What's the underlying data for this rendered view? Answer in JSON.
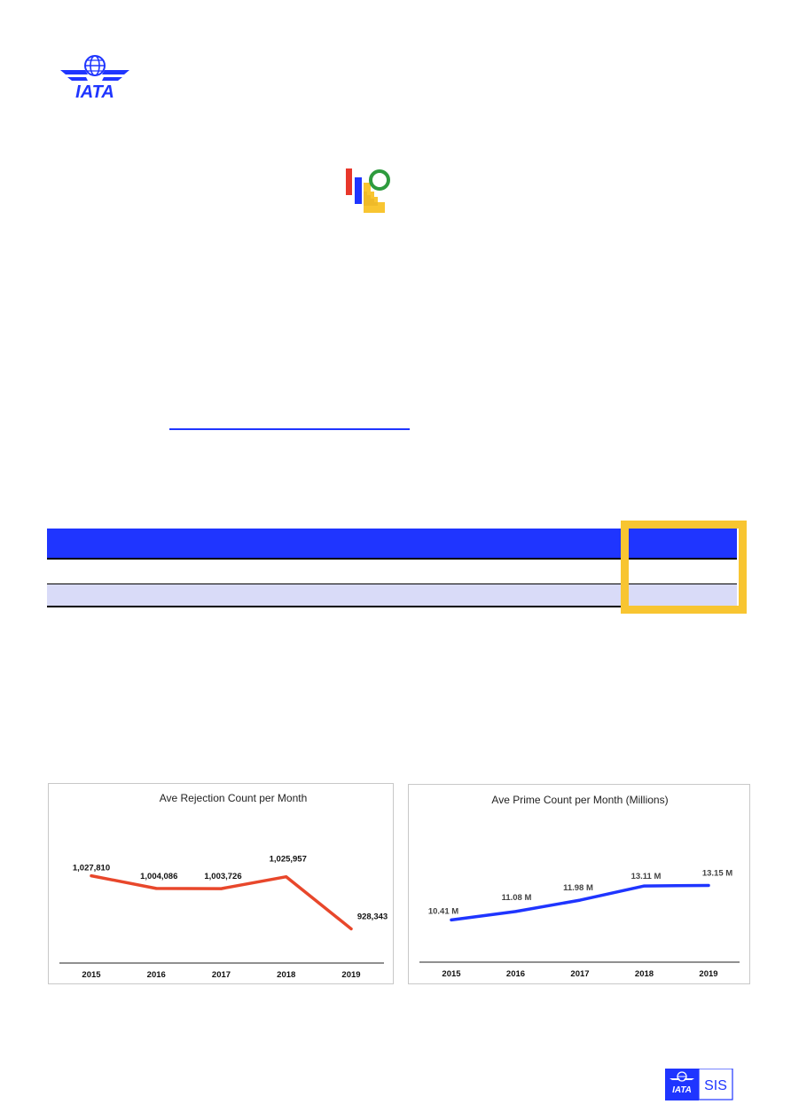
{
  "header": {
    "logo_text": "IATA",
    "brand_color": "#1f35ff"
  },
  "product_mark": {
    "icon": "bars-and-ring-icon",
    "colors": [
      "#e8372b",
      "#1f35ff",
      "#f8c531",
      "#2e9b3e"
    ]
  },
  "table": {
    "header_color": "#1f35ff",
    "alt_row_color": "#d9dbf8",
    "highlight_color": "#f8c531"
  },
  "chart_data": [
    {
      "type": "line",
      "title": "Ave Rejection Count per Month",
      "categories": [
        "2015",
        "2016",
        "2017",
        "2018",
        "2019"
      ],
      "values": [
        1027810,
        1004086,
        1003726,
        1025957,
        928343
      ],
      "data_labels": [
        "1,027,810",
        "1,004,086",
        "1,003,726",
        "1,025,957",
        "928,343"
      ],
      "ylim": [
        600000,
        1200000
      ],
      "color": "#e8472b",
      "grid": false,
      "legend": "none"
    },
    {
      "type": "line",
      "title": "Ave Prime Count per Month (Millions)",
      "categories": [
        "2015",
        "2016",
        "2017",
        "2018",
        "2019"
      ],
      "values": [
        10.41,
        11.08,
        11.98,
        13.11,
        13.15
      ],
      "data_labels": [
        "10.41 M",
        "11.08  M",
        "11.98  M",
        "13.11  M",
        "13.15  M"
      ],
      "ylim": [
        0,
        22
      ],
      "color": "#1f35ff",
      "grid": false,
      "legend": "none"
    }
  ],
  "footer": {
    "logo_text": "IATA",
    "product_text": "SIS"
  }
}
